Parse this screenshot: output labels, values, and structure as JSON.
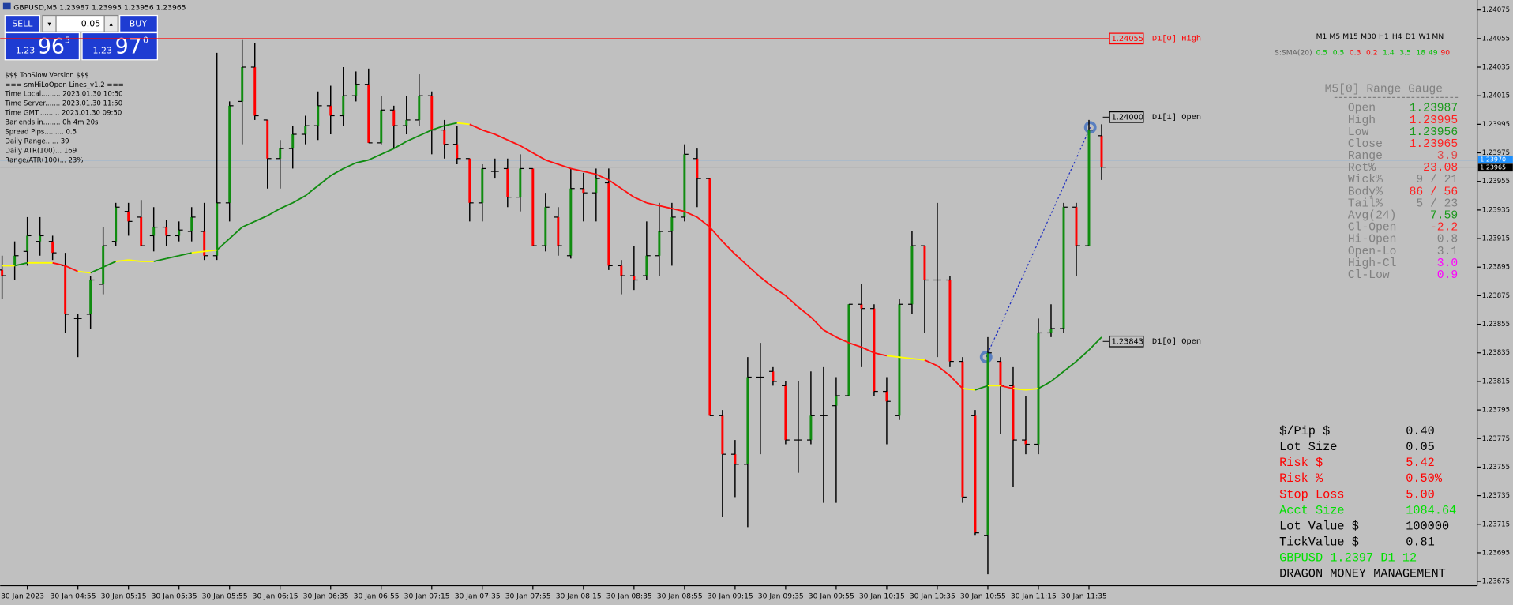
{
  "header": {
    "title": "GBPUSD,M5  1.23987 1.23995 1.23956 1.23965"
  },
  "trade_panel": {
    "sell": "SELL",
    "buy": "BUY",
    "lot": "0.05",
    "sell_price": {
      "prefix": "1.23",
      "big": "96",
      "small": "5"
    },
    "buy_price": {
      "prefix": "1.23",
      "big": "97",
      "small": "0"
    }
  },
  "info_lines": [
    "$$$ TooSlow Version $$$",
    "=== smHiLoOpen Lines_v1.2 ===",
    "Time Local......... 2023.01.30 10:50",
    "Time Server....... 2023.01.30 11:50",
    "Time GMT.......... 2023.01.30 09:50",
    "Bar ends in........ 0h 4m 20s",
    "Spread Pips......... 0.5",
    "Daily Range...... 39",
    "Daily ATR(100)... 169",
    "Range/ATR(100)... 23%"
  ],
  "timeframes": [
    "M1",
    "M5",
    "M15",
    "M30",
    "H1",
    "H4",
    "D1",
    "W1",
    "MN"
  ],
  "sma_strip": {
    "label": "S:SMA(20)",
    "values": [
      {
        "text": "0.5",
        "color": "#00c000"
      },
      {
        "text": "0.5",
        "color": "#00c000"
      },
      {
        "text": "0.3",
        "color": "#ff0000"
      },
      {
        "text": "0.2",
        "color": "#ff0000"
      },
      {
        "text": "1.4",
        "color": "#00c000"
      },
      {
        "text": "3.5",
        "color": "#00c000"
      },
      {
        "text": "18",
        "color": "#00c000"
      },
      {
        "text": "49",
        "color": "#00c000"
      },
      {
        "text": "90",
        "color": "#ff0000"
      }
    ]
  },
  "range_gauge": {
    "title": "M5[0] Range Gauge",
    "rows": [
      {
        "label": "Open",
        "value": "1.23987",
        "color": "#1a9a1a"
      },
      {
        "label": "High",
        "value": "1.23995",
        "color": "#ff2020"
      },
      {
        "label": "Low",
        "value": "1.23956",
        "color": "#1a9a1a"
      },
      {
        "label": "Close",
        "value": "1.23965",
        "color": "#ff2020"
      },
      {
        "label": "Range",
        "value": "3.9",
        "color": "#e04848"
      },
      {
        "label": "Ret%",
        "value": "23.08",
        "color": "#ff2020"
      },
      {
        "label": "Wick%",
        "value": "9 / 21",
        "color": "#808080"
      },
      {
        "label": "Body%",
        "value": "86 / 56",
        "color": "#ff2020"
      },
      {
        "label": "Tail%",
        "value": "5 / 23",
        "color": "#808080"
      },
      {
        "label": "Avg(24)",
        "value": "7.59",
        "color": "#1a9a1a"
      },
      {
        "label": "Cl-Open",
        "value": "-2.2",
        "color": "#ff2020"
      },
      {
        "label": "Hi-Open",
        "value": "0.8",
        "color": "#808080"
      },
      {
        "label": "Open-Lo",
        "value": "3.1",
        "color": "#808080"
      },
      {
        "label": "High-Cl",
        "value": "3.0",
        "color": "#ff00ff"
      },
      {
        "label": "Cl-Low",
        "value": "0.9",
        "color": "#ff00ff"
      }
    ]
  },
  "money_panel": {
    "rows": [
      {
        "label": "$/Pip $",
        "value": "0.40",
        "color": "#000000"
      },
      {
        "label": "Lot Size",
        "value": "0.05",
        "color": "#000000"
      },
      {
        "label": "Risk $",
        "value": "5.42",
        "color": "#ff0000"
      },
      {
        "label": "Risk %",
        "value": "0.50%",
        "color": "#ff0000"
      },
      {
        "label": "Stop Loss",
        "value": "5.00",
        "color": "#ff0000"
      },
      {
        "label": "Acct Size",
        "value": "1084.64",
        "color": "#00e000"
      },
      {
        "label": "Lot Value $",
        "value": "100000",
        "color": "#000000"
      },
      {
        "label": "TickValue $",
        "value": "0.81",
        "color": "#000000"
      }
    ],
    "symbol_line": "GBPUSD 1.2397 D1 12",
    "footer": "DRAGON MONEY MANAGEMENT"
  },
  "chart_data": {
    "type": "ohlc",
    "categories": [
      null,
      null,
      "30 Jan 2023",
      null,
      null,
      null,
      "30 Jan 04:55",
      null,
      null,
      null,
      "30 Jan 05:15",
      null,
      null,
      null,
      "30 Jan 05:35",
      null,
      null,
      null,
      "30 Jan 05:55",
      null,
      null,
      null,
      "30 Jan 06:15",
      null,
      null,
      null,
      "30 Jan 06:35",
      null,
      null,
      null,
      "30 Jan 06:55",
      null,
      null,
      null,
      "30 Jan 07:15",
      null,
      null,
      null,
      "30 Jan 07:35",
      null,
      null,
      null,
      "30 Jan 07:55",
      null,
      null,
      null,
      "30 Jan 08:15",
      null,
      null,
      null,
      "30 Jan 08:35",
      null,
      null,
      null,
      "30 Jan 08:55",
      null,
      null,
      null,
      "30 Jan 09:15",
      null,
      null,
      null,
      "30 Jan 09:35",
      null,
      null,
      null,
      "30 Jan 09:55",
      null,
      null,
      null,
      "30 Jan 10:15",
      null,
      null,
      null,
      "30 Jan 10:35",
      null,
      null,
      null,
      "30 Jan 10:55",
      null,
      null,
      null,
      "30 Jan 11:15",
      null,
      null,
      null,
      "30 Jan 11:35",
      null
    ],
    "open": [
      1.23893,
      1.23896,
      1.23906,
      1.23913,
      1.23913,
      1.23896,
      1.23859,
      1.23862,
      1.23883,
      1.23913,
      1.23934,
      1.2393,
      1.23917,
      1.23923,
      1.23917,
      1.2392,
      1.2392,
      1.23903,
      1.2394,
      1.24011,
      1.24035,
      1.23998,
      1.23971,
      1.23978,
      1.23988,
      1.23994,
      1.24008,
      1.24001,
      1.24015,
      1.24023,
      1.23982,
      1.24005,
      1.23994,
      1.23998,
      1.24015,
      1.23991,
      1.23981,
      1.23971,
      1.2394,
      1.23962,
      1.23964,
      1.23944,
      1.23964,
      1.2391,
      1.2393,
      1.23903,
      1.2395,
      1.23947,
      1.23954,
      1.23896,
      1.23889,
      1.23889,
      1.23903,
      1.2392,
      1.2393,
      1.23971,
      1.23957,
      1.23791,
      1.23764,
      1.23757,
      1.23818,
      1.23822,
      1.23812,
      1.23774,
      1.23774,
      1.23791,
      1.23798,
      1.23805,
      1.23869,
      1.23866,
      1.23808,
      1.23791,
      1.23869,
      1.2391,
      1.23886,
      1.23886,
      1.23829,
      1.23791,
      1.23707,
      1.23829,
      1.23812,
      1.23774,
      1.23771,
      1.23849,
      1.23852,
      1.23937,
      1.2391,
      1.23987
    ],
    "high": [
      1.23903,
      1.23913,
      1.2393,
      1.2393,
      1.23917,
      1.23905,
      1.23862,
      1.23889,
      1.23923,
      1.2394,
      1.2394,
      1.23942,
      1.23937,
      1.23928,
      1.23927,
      1.23937,
      1.2394,
      1.24045,
      1.24011,
      1.24054,
      1.24052,
      1.23998,
      1.23984,
      1.23994,
      1.24001,
      1.24018,
      1.24022,
      1.24035,
      1.24032,
      1.24034,
      1.24015,
      1.24008,
      1.24015,
      1.2403,
      1.24018,
      1.23998,
      1.23994,
      1.23971,
      1.23967,
      1.23971,
      1.23971,
      1.23974,
      1.23964,
      1.23947,
      1.23937,
      1.23964,
      1.23961,
      1.23964,
      1.23964,
      1.239,
      1.2391,
      1.23927,
      1.2394,
      1.2394,
      1.23981,
      1.23978,
      1.23957,
      1.23795,
      1.23774,
      1.23832,
      1.23842,
      1.23825,
      1.23815,
      1.23815,
      1.23822,
      1.23825,
      1.23818,
      1.23869,
      1.23883,
      1.23869,
      1.23818,
      1.23873,
      1.2392,
      1.2391,
      1.2394,
      1.23889,
      1.23832,
      1.23795,
      1.23846,
      1.23832,
      1.23825,
      1.23805,
      1.23859,
      1.23869,
      1.2394,
      1.2394,
      1.23998,
      1.23995
    ],
    "low": [
      1.23873,
      1.23886,
      1.23896,
      1.23903,
      1.239,
      1.23849,
      1.23832,
      1.23852,
      1.23876,
      1.2391,
      1.23917,
      1.2391,
      1.23906,
      1.2391,
      1.23913,
      1.23913,
      1.239,
      1.239,
      1.23927,
      1.23981,
      1.23998,
      1.2395,
      1.2395,
      1.23964,
      1.23981,
      1.23984,
      1.23988,
      1.23994,
      1.24011,
      1.23982,
      1.23981,
      1.23978,
      1.23988,
      1.23994,
      1.23974,
      1.23971,
      1.23967,
      1.23927,
      1.23927,
      1.23957,
      1.23937,
      1.23934,
      1.2391,
      1.23906,
      1.23903,
      1.23901,
      1.23927,
      1.23927,
      1.23893,
      1.23876,
      1.23879,
      1.23886,
      1.23889,
      1.23896,
      1.23927,
      1.23937,
      1.23791,
      1.2372,
      1.23734,
      1.23713,
      1.23764,
      1.23812,
      1.23771,
      1.23751,
      1.23771,
      1.2373,
      1.2373,
      1.23805,
      1.23825,
      1.23805,
      1.23771,
      1.23788,
      1.23862,
      1.23849,
      1.23832,
      1.23825,
      1.2373,
      1.23707,
      1.2368,
      1.23778,
      1.23741,
      1.23764,
      1.23764,
      1.23846,
      1.23849,
      1.23889,
      1.2391,
      1.23956
    ],
    "close": [
      1.23889,
      1.23903,
      1.23917,
      1.23917,
      1.23905,
      1.23862,
      1.23859,
      1.23886,
      1.2391,
      1.23937,
      1.23927,
      1.2391,
      1.23923,
      1.23917,
      1.23921,
      1.2393,
      1.23903,
      1.2394,
      1.24008,
      1.24035,
      1.24001,
      1.23971,
      1.23978,
      1.23988,
      1.23994,
      1.24008,
      1.24001,
      1.24015,
      1.24023,
      1.23982,
      1.24005,
      1.23994,
      1.23998,
      1.24015,
      1.23991,
      1.23981,
      1.23971,
      1.2394,
      1.23964,
      1.23962,
      1.23944,
      1.23964,
      1.2391,
      1.23937,
      1.2391,
      1.2395,
      1.23947,
      1.23957,
      1.23896,
      1.23889,
      1.23886,
      1.23903,
      1.2392,
      1.2393,
      1.23974,
      1.23957,
      1.23791,
      1.23764,
      1.23757,
      1.23818,
      1.23818,
      1.23815,
      1.23774,
      1.23774,
      1.23791,
      1.23791,
      1.23805,
      1.23869,
      1.23866,
      1.23808,
      1.23801,
      1.23869,
      1.2391,
      1.23886,
      1.23886,
      1.23829,
      1.23734,
      1.23709,
      1.23835,
      1.23812,
      1.23774,
      1.23771,
      1.23849,
      1.23852,
      1.23937,
      1.2391,
      1.23991,
      1.23965
    ],
    "ma": [
      1.23896,
      1.23896,
      1.23898,
      1.23898,
      1.23898,
      1.23896,
      1.23892,
      1.23891,
      1.23895,
      1.23899,
      1.239,
      1.23899,
      1.23899,
      1.23901,
      1.23903,
      1.23905,
      1.23906,
      1.23907,
      1.23915,
      1.23923,
      1.23927,
      1.23931,
      1.23936,
      1.2394,
      1.23945,
      1.23952,
      1.23959,
      1.23964,
      1.23968,
      1.2397,
      1.23974,
      1.23978,
      1.23983,
      1.23987,
      1.23991,
      1.23994,
      1.23996,
      1.23995,
      1.23991,
      1.23988,
      1.23984,
      1.2398,
      1.23975,
      1.2397,
      1.23967,
      1.23964,
      1.23962,
      1.2396,
      1.23956,
      1.2395,
      1.23944,
      1.2394,
      1.23938,
      1.23936,
      1.23934,
      1.2393,
      1.23923,
      1.23913,
      1.23904,
      1.23896,
      1.23888,
      1.23881,
      1.23875,
      1.23867,
      1.2386,
      1.23851,
      1.23846,
      1.23842,
      1.23839,
      1.23835,
      1.23833,
      1.23832,
      1.23831,
      1.2383,
      1.23826,
      1.23819,
      1.2381,
      1.23809,
      1.23812,
      1.23812,
      1.2381,
      1.23809,
      1.2381,
      1.23815,
      1.23822,
      1.23829,
      1.23837,
      1.23846
    ],
    "levels": [
      {
        "price": 1.24055,
        "name": "D1[0] High",
        "color": "#ff0000"
      },
      {
        "price": {
          "value": 1.24,
          "label": "1.24000"
        },
        "name": "D1[1] Open",
        "color": "#000000"
      },
      {
        "price": 1.23843,
        "name": "D1[0] Open",
        "color": "#000000"
      }
    ],
    "ask": {
      "value": 1.2397,
      "label": "1.23970"
    },
    "bid": 1.23965,
    "ylim": [
      1.23672,
      1.24082
    ],
    "yticks": [
      1.24075,
      1.24055,
      1.24035,
      1.24015,
      1.23995,
      1.23975,
      1.23955,
      1.23935,
      1.23915,
      1.23895,
      1.23875,
      1.23855,
      1.23835,
      1.23815,
      1.23795,
      1.23775,
      1.23755,
      1.23735,
      1.23715,
      1.23695,
      1.23675
    ]
  }
}
